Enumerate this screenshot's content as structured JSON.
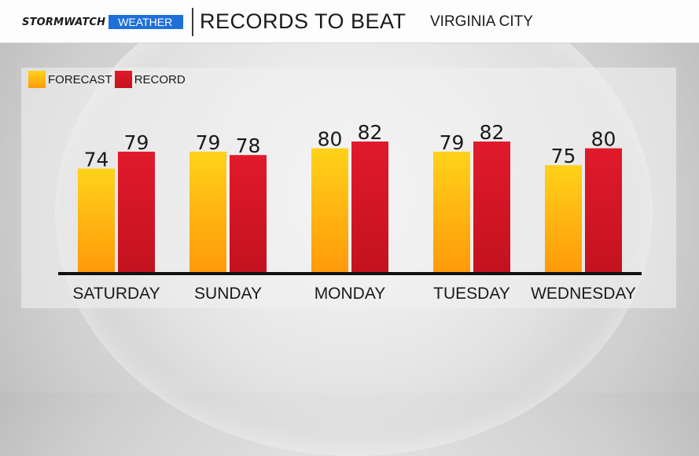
{
  "header": {
    "brand_storm": "STORMWATCH",
    "brand_weather": "WEATHER",
    "title": "RECORDS TO BEAT",
    "location": "VIRGINIA CITY"
  },
  "legend": {
    "forecast": "FORECAST",
    "record": "RECORD"
  },
  "colors": {
    "forecast_top": "#ffd21a",
    "forecast_bottom": "#ff9a0a",
    "record_top": "#e01a2b",
    "record_bottom": "#c4121f",
    "baseline": "#111111",
    "brand_blue": "#1e6fd9"
  },
  "chart_data": {
    "type": "bar",
    "categories": [
      "SATURDAY",
      "SUNDAY",
      "MONDAY",
      "TUESDAY",
      "WEDNESDAY"
    ],
    "series": [
      {
        "name": "FORECAST",
        "values": [
          74,
          79,
          80,
          79,
          75
        ]
      },
      {
        "name": "RECORD",
        "values": [
          79,
          78,
          82,
          82,
          80
        ]
      }
    ],
    "data_labels": true,
    "legend": "top-left",
    "grid": false
  }
}
